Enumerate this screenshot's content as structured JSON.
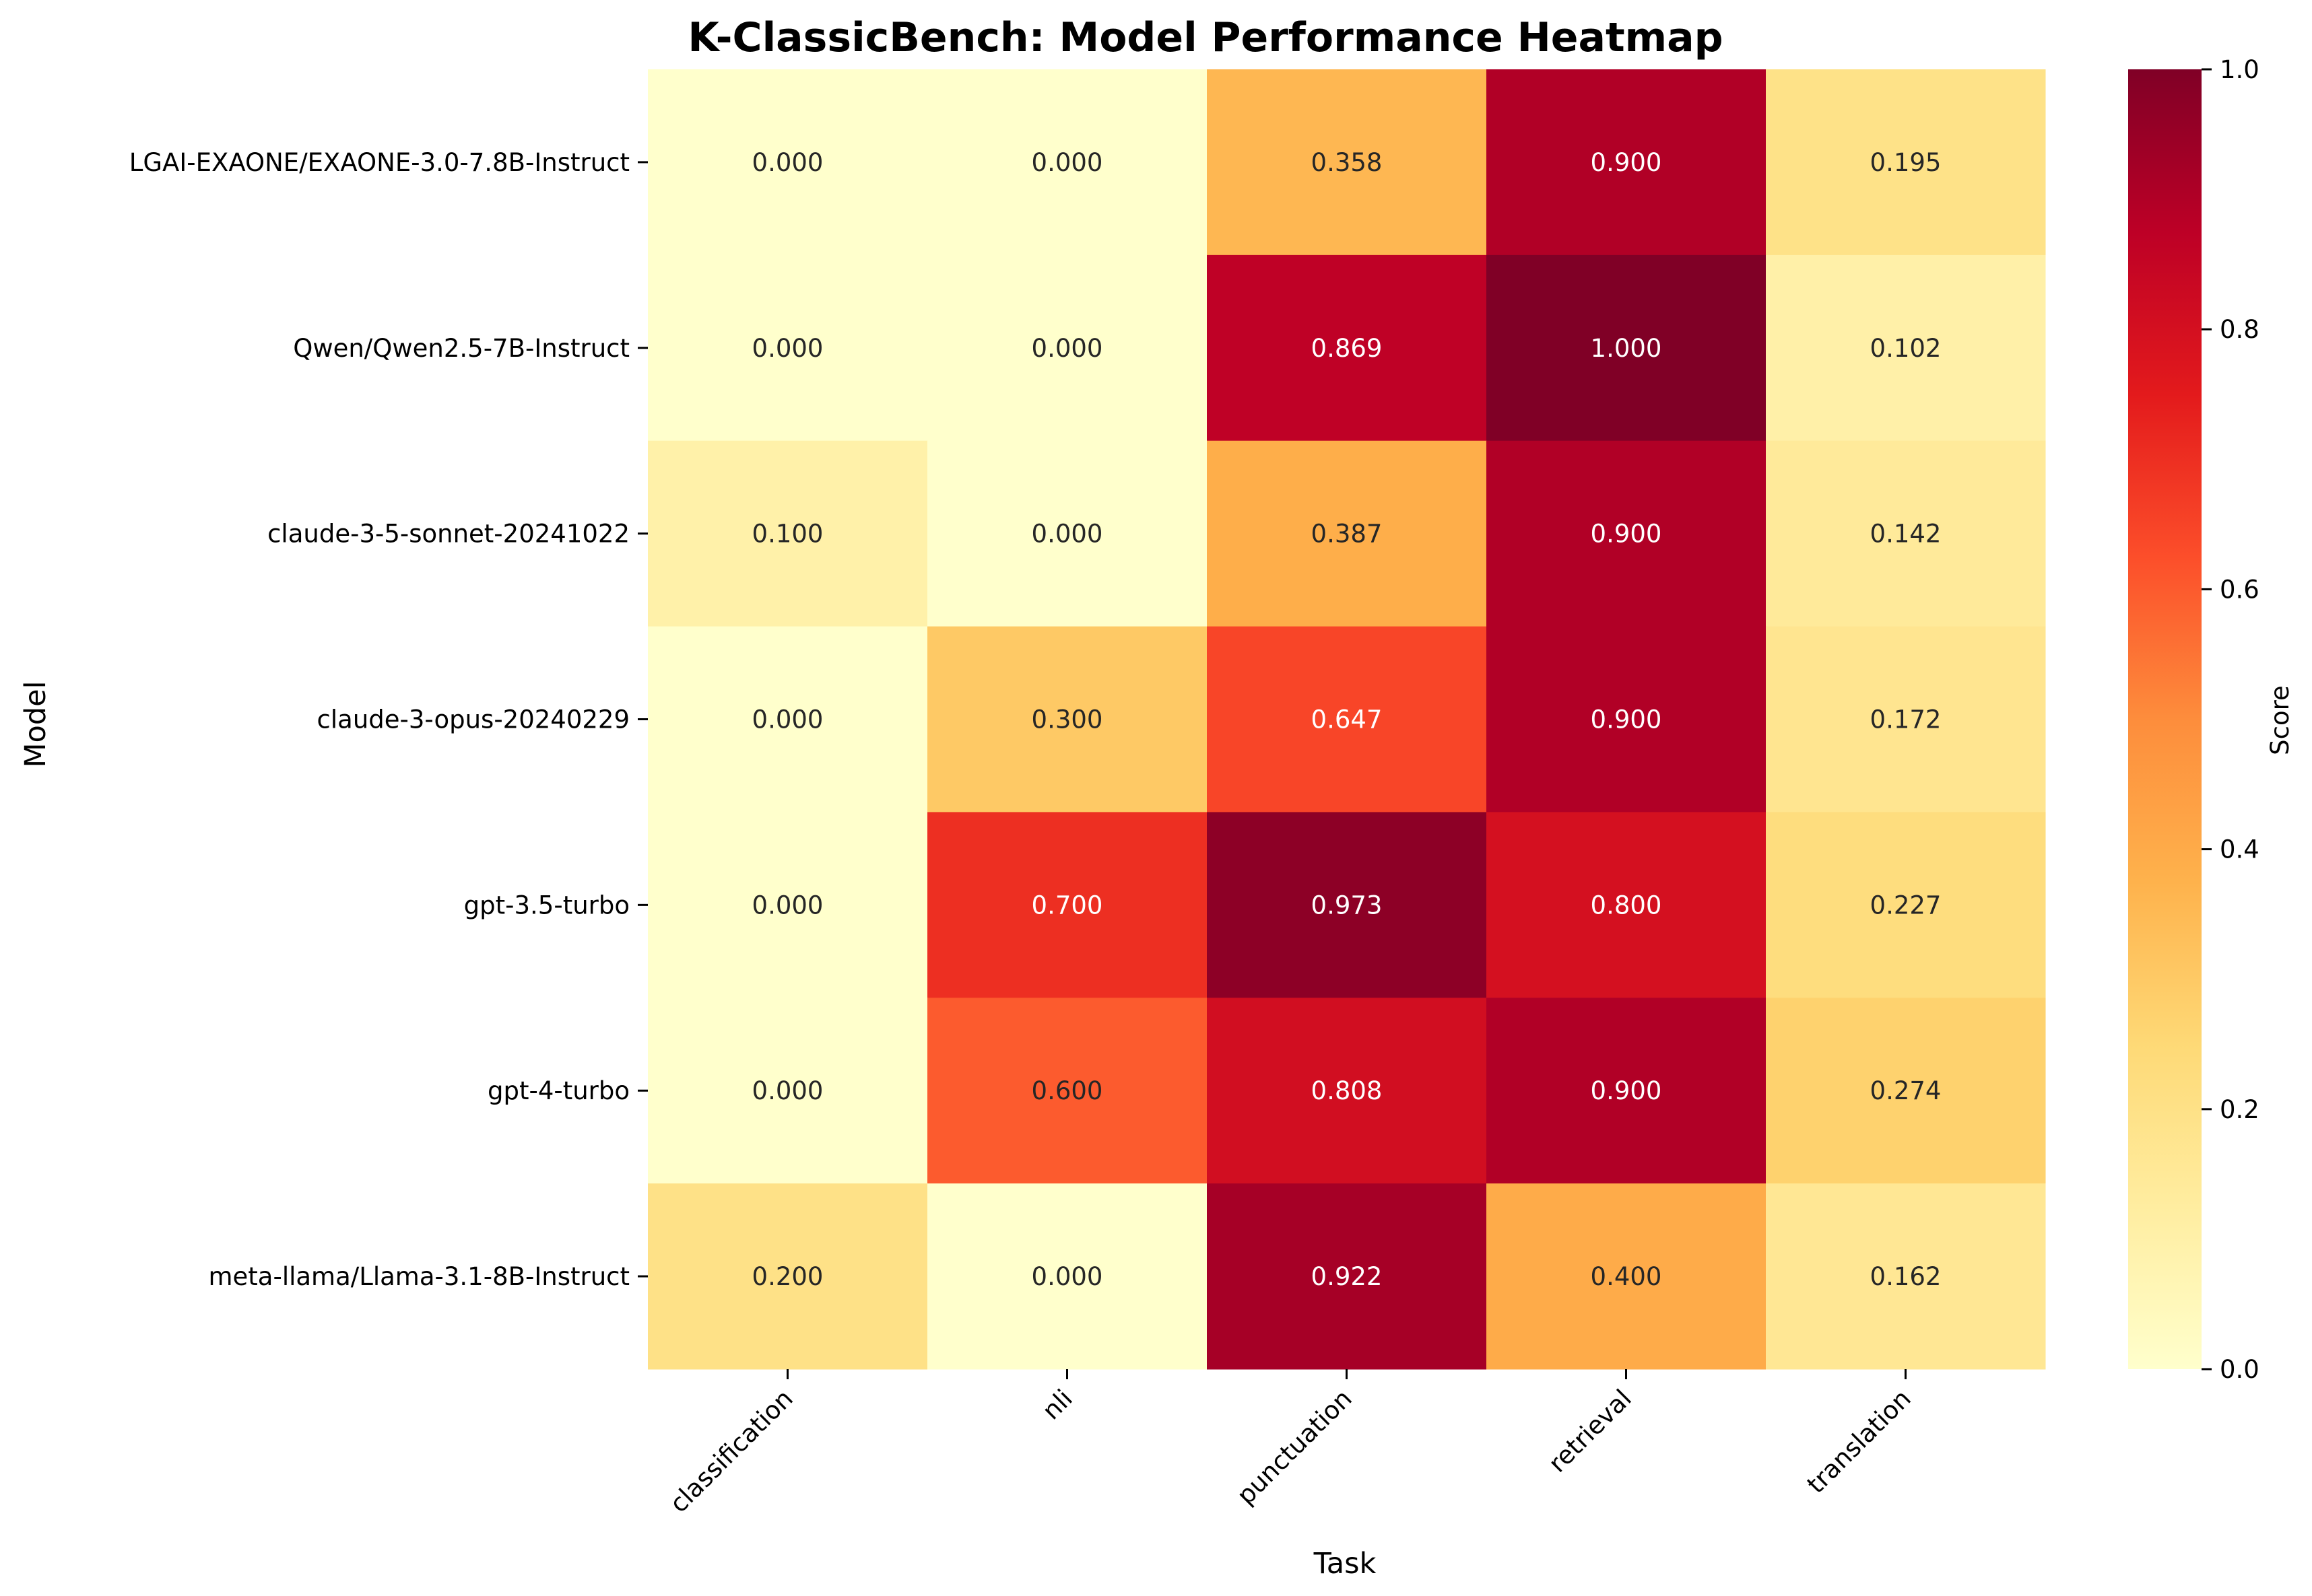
{
  "chart_data": {
    "type": "heatmap",
    "title": "K-ClassicBench: Model Performance Heatmap",
    "xlabel": "Task",
    "ylabel": "Model",
    "colorbar_label": "Score",
    "colorbar_ticks": [
      "0.0",
      "0.2",
      "0.4",
      "0.6",
      "0.8",
      "1.0"
    ],
    "vmin": 0.0,
    "vmax": 1.0,
    "colormap": "YlOrRd",
    "columns": [
      "classification",
      "nli",
      "punctuation",
      "retrieval",
      "translation"
    ],
    "rows": [
      "LGAI-EXAONE/EXAONE-3.0-7.8B-Instruct",
      "Qwen/Qwen2.5-7B-Instruct",
      "claude-3-5-sonnet-20241022",
      "claude-3-opus-20240229",
      "gpt-3.5-turbo",
      "gpt-4-turbo",
      "meta-llama/Llama-3.1-8B-Instruct"
    ],
    "values": [
      [
        0.0,
        0.0,
        0.358,
        0.9,
        0.195
      ],
      [
        0.0,
        0.0,
        0.869,
        1.0,
        0.102
      ],
      [
        0.1,
        0.0,
        0.387,
        0.9,
        0.142
      ],
      [
        0.0,
        0.3,
        0.647,
        0.9,
        0.172
      ],
      [
        0.0,
        0.7,
        0.973,
        0.8,
        0.227
      ],
      [
        0.0,
        0.6,
        0.808,
        0.9,
        0.274
      ],
      [
        0.2,
        0.0,
        0.922,
        0.4,
        0.162
      ]
    ],
    "value_labels": [
      [
        "0.000",
        "0.000",
        "0.358",
        "0.900",
        "0.195"
      ],
      [
        "0.000",
        "0.000",
        "0.869",
        "1.000",
        "0.102"
      ],
      [
        "0.100",
        "0.000",
        "0.387",
        "0.900",
        "0.142"
      ],
      [
        "0.000",
        "0.300",
        "0.647",
        "0.900",
        "0.172"
      ],
      [
        "0.000",
        "0.700",
        "0.973",
        "0.800",
        "0.227"
      ],
      [
        "0.000",
        "0.600",
        "0.808",
        "0.900",
        "0.274"
      ],
      [
        "0.200",
        "0.000",
        "0.922",
        "0.400",
        "0.162"
      ]
    ]
  }
}
